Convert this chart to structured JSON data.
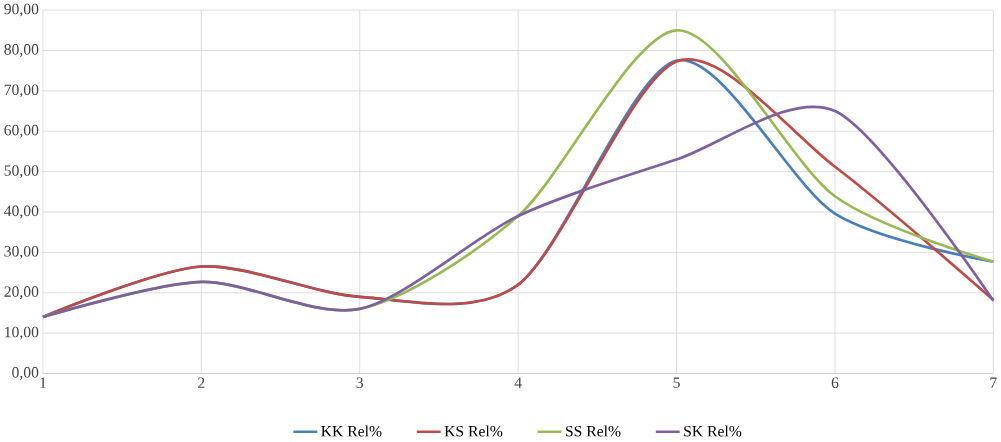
{
  "chart_data": {
    "type": "line",
    "x": [
      1,
      2,
      3,
      4,
      5,
      6,
      7
    ],
    "series": [
      {
        "name": "KK Rel%",
        "color": "#4a7ebb",
        "values": [
          14,
          26.5,
          19,
          22,
          77.5,
          39.6,
          27.7
        ]
      },
      {
        "name": "KS Rel%",
        "color": "#be4b48",
        "values": [
          14,
          26.5,
          19,
          22,
          77.3,
          51.2,
          18.2
        ]
      },
      {
        "name": "SS Rel%",
        "color": "#98b954",
        "values": [
          14,
          22.7,
          16,
          39,
          85,
          43.9,
          27.7
        ]
      },
      {
        "name": "SK Rel%",
        "color": "#7d60a0",
        "values": [
          14,
          22.7,
          16,
          39,
          53,
          65,
          18
        ]
      }
    ],
    "xlim": [
      1,
      7
    ],
    "xticks": [
      1,
      2,
      3,
      4,
      5,
      6,
      7
    ],
    "ylim": [
      0,
      90
    ],
    "yticks": [
      {
        "value": 0,
        "label": "0,00"
      },
      {
        "value": 10,
        "label": "10,00"
      },
      {
        "value": 20,
        "label": "20,00"
      },
      {
        "value": 30,
        "label": "30,00"
      },
      {
        "value": 40,
        "label": "40,00"
      },
      {
        "value": 50,
        "label": "50,00"
      },
      {
        "value": 60,
        "label": "60,00"
      },
      {
        "value": 70,
        "label": "70,00"
      },
      {
        "value": 80,
        "label": "80,00"
      },
      {
        "value": 90,
        "label": "90,00"
      }
    ],
    "grid": true,
    "legend": "bottom",
    "marker": "none",
    "line_style": "solid"
  }
}
